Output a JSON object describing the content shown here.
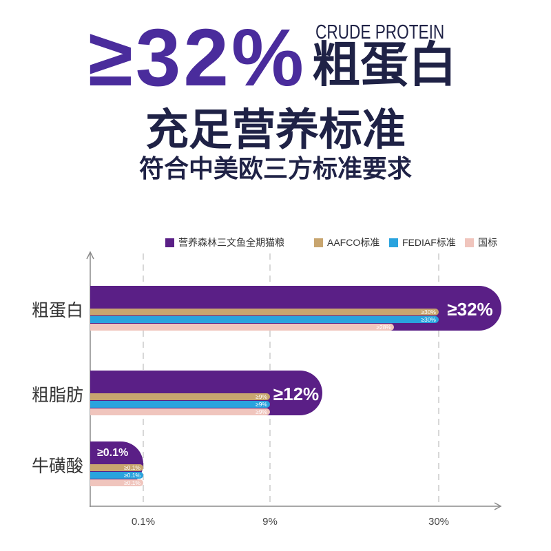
{
  "header": {
    "big_value": "≥32%",
    "label_en": "CRUDE PROTEIN",
    "label_cn": "粗蛋白",
    "headline": "充足营养标准",
    "subheadline": "符合中美欧三方标准要求"
  },
  "colors": {
    "accent_purple": "#4a2c9c",
    "heading_navy": "#1f2246"
  },
  "chart_data": {
    "type": "bar",
    "horizontal": true,
    "categories": [
      "粗蛋白",
      "粗脂肪",
      "牛磺酸"
    ],
    "series": [
      {
        "name": "营养森林三文鱼全期猫粮",
        "color": "#5a1f86",
        "values": [
          32,
          12,
          0.1
        ],
        "labels": [
          "≥32%",
          "≥12%",
          "≥0.1%"
        ]
      },
      {
        "name": "AAFCO标准",
        "color": "#c8a56f",
        "values": [
          30,
          9,
          0.1
        ],
        "labels": [
          "≥30%",
          "≥9%",
          "≥0.1%"
        ]
      },
      {
        "name": "FEDIAF标准",
        "color": "#29a3de",
        "values": [
          30,
          9,
          0.1
        ],
        "labels": [
          "≥30%",
          "≥9%",
          "≥0.1%"
        ]
      },
      {
        "name": "国标",
        "color": "#f0c5bd",
        "values": [
          28,
          9,
          0.1
        ],
        "labels": [
          "≥28%",
          "≥9%",
          "≥0.1%"
        ]
      }
    ],
    "x_ticks": [
      {
        "label": "0.1%",
        "value": 0.1
      },
      {
        "label": "9%",
        "value": 9
      },
      {
        "label": "30%",
        "value": 30
      }
    ],
    "grid": true,
    "legend_position": "top-right"
  }
}
